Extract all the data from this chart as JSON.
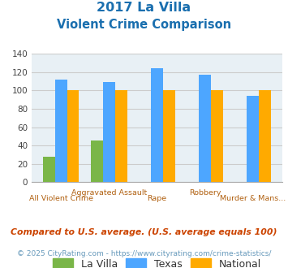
{
  "title_line1": "2017 La Villa",
  "title_line2": "Violent Crime Comparison",
  "categories": [
    "All Violent Crime",
    "Aggravated Assault",
    "Rape",
    "Robbery",
    "Murder & Mans..."
  ],
  "la_villa": [
    28,
    45,
    0,
    0,
    0
  ],
  "texas": [
    112,
    109,
    124,
    117,
    94
  ],
  "national": [
    100,
    100,
    100,
    100,
    100
  ],
  "colors": {
    "la_villa": "#7ab648",
    "texas": "#4da6ff",
    "national": "#ffaa00"
  },
  "ylim": [
    0,
    140
  ],
  "yticks": [
    0,
    20,
    40,
    60,
    80,
    100,
    120,
    140
  ],
  "title_color": "#1a6faf",
  "xlabel_color": "#b06010",
  "grid_color": "#cccccc",
  "bg_color": "#e8f0f5",
  "footnote1": "Compared to U.S. average. (U.S. average equals 100)",
  "footnote2": "© 2025 CityRating.com - https://www.cityrating.com/crime-statistics/",
  "footnote1_color": "#cc4400",
  "footnote2_color": "#6699bb",
  "legend_labels": [
    "La Villa",
    "Texas",
    "National"
  ]
}
